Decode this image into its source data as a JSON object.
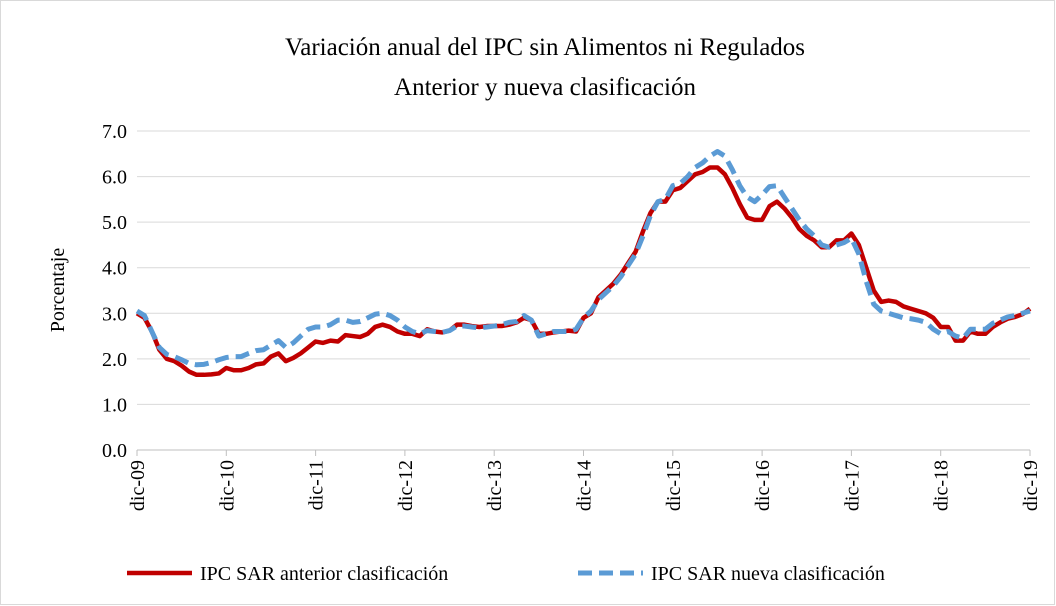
{
  "chart_data": {
    "type": "line",
    "title": "Variación anual del IPC sin Alimentos ni Regulados",
    "subtitle": "Anterior y nueva clasificación",
    "y_label": "Porcentaje",
    "categories": [
      "dic-09",
      null,
      null,
      null,
      null,
      null,
      null,
      null,
      null,
      null,
      null,
      null,
      "dic-10",
      null,
      null,
      null,
      null,
      null,
      null,
      null,
      null,
      null,
      null,
      null,
      "dic-11",
      null,
      null,
      null,
      null,
      null,
      null,
      null,
      null,
      null,
      null,
      null,
      "dic-12",
      null,
      null,
      null,
      null,
      null,
      null,
      null,
      null,
      null,
      null,
      null,
      "dic-13",
      null,
      null,
      null,
      null,
      null,
      null,
      null,
      null,
      null,
      null,
      null,
      "dic-14",
      null,
      null,
      null,
      null,
      null,
      null,
      null,
      null,
      null,
      null,
      null,
      "dic-15",
      null,
      null,
      null,
      null,
      null,
      null,
      null,
      null,
      null,
      null,
      null,
      "dic-16",
      null,
      null,
      null,
      null,
      null,
      null,
      null,
      null,
      null,
      null,
      null,
      "dic-17",
      null,
      null,
      null,
      null,
      null,
      null,
      null,
      null,
      null,
      null,
      null,
      "dic-18",
      null,
      null,
      null,
      null,
      null,
      null,
      null,
      null,
      null,
      null,
      null,
      "dic-19"
    ],
    "series": [
      {
        "name": "IPC SAR anterior clasificación",
        "color": "#c00000",
        "dash": false,
        "values": [
          3.0,
          2.9,
          2.6,
          2.2,
          2.0,
          1.95,
          1.85,
          1.72,
          1.65,
          1.65,
          1.66,
          1.68,
          1.8,
          1.75,
          1.75,
          1.8,
          1.88,
          1.9,
          2.05,
          2.12,
          1.95,
          2.02,
          2.12,
          2.25,
          2.38,
          2.35,
          2.4,
          2.38,
          2.52,
          2.5,
          2.48,
          2.55,
          2.7,
          2.75,
          2.7,
          2.6,
          2.55,
          2.55,
          2.5,
          2.65,
          2.6,
          2.58,
          2.62,
          2.75,
          2.75,
          2.72,
          2.7,
          2.72,
          2.72,
          2.72,
          2.75,
          2.8,
          2.9,
          2.85,
          2.55,
          2.55,
          2.58,
          2.6,
          2.62,
          2.6,
          2.9,
          3.0,
          3.35,
          3.5,
          3.65,
          3.85,
          4.1,
          4.35,
          4.8,
          5.2,
          5.45,
          5.45,
          5.7,
          5.75,
          5.9,
          6.05,
          6.1,
          6.2,
          6.2,
          6.05,
          5.75,
          5.4,
          5.1,
          5.05,
          5.05,
          5.35,
          5.45,
          5.3,
          5.1,
          4.85,
          4.7,
          4.6,
          4.45,
          4.45,
          4.6,
          4.6,
          4.75,
          4.5,
          4.0,
          3.5,
          3.25,
          3.28,
          3.25,
          3.15,
          3.1,
          3.05,
          3.0,
          2.9,
          2.7,
          2.7,
          2.4,
          2.4,
          2.6,
          2.55,
          2.55,
          2.7,
          2.8,
          2.88,
          2.92,
          2.98,
          3.1
        ]
      },
      {
        "name": "IPC SAR nueva clasificación",
        "color": "#5b9bd5",
        "dash": true,
        "values": [
          3.05,
          2.95,
          2.6,
          2.25,
          2.1,
          2.05,
          1.98,
          1.9,
          1.87,
          1.88,
          1.92,
          1.98,
          2.03,
          2.05,
          2.05,
          2.12,
          2.18,
          2.2,
          2.3,
          2.4,
          2.25,
          2.35,
          2.5,
          2.65,
          2.7,
          2.7,
          2.75,
          2.85,
          2.85,
          2.8,
          2.82,
          2.9,
          2.98,
          3.0,
          2.95,
          2.85,
          2.7,
          2.6,
          2.55,
          2.62,
          2.6,
          2.58,
          2.62,
          2.72,
          2.72,
          2.7,
          2.68,
          2.7,
          2.72,
          2.75,
          2.8,
          2.82,
          2.95,
          2.85,
          2.5,
          2.55,
          2.6,
          2.6,
          2.6,
          2.65,
          2.9,
          3.05,
          3.3,
          3.45,
          3.6,
          3.8,
          4.05,
          4.3,
          4.7,
          5.15,
          5.45,
          5.5,
          5.8,
          5.85,
          6.0,
          6.2,
          6.3,
          6.45,
          6.55,
          6.45,
          6.15,
          5.8,
          5.55,
          5.45,
          5.6,
          5.78,
          5.8,
          5.55,
          5.3,
          5.05,
          4.85,
          4.7,
          4.5,
          4.45,
          4.5,
          4.55,
          4.65,
          4.3,
          3.7,
          3.2,
          3.05,
          3.0,
          2.95,
          2.9,
          2.88,
          2.85,
          2.8,
          2.65,
          2.55,
          2.6,
          2.5,
          2.45,
          2.65,
          2.65,
          2.65,
          2.78,
          2.85,
          2.92,
          2.95,
          3.0,
          3.05
        ]
      }
    ],
    "ylim": [
      0,
      7
    ],
    "yticks": [
      {
        "value": 0,
        "label": "0.0"
      },
      {
        "value": 1,
        "label": "1.0"
      },
      {
        "value": 2,
        "label": "2.0"
      },
      {
        "value": 3,
        "label": "3.0"
      },
      {
        "value": 4,
        "label": "4.0"
      },
      {
        "value": 5,
        "label": "5.0"
      },
      {
        "value": 6,
        "label": "6.0"
      },
      {
        "value": 7,
        "label": "7.0"
      }
    ],
    "grid": true,
    "legend": "bottom"
  }
}
